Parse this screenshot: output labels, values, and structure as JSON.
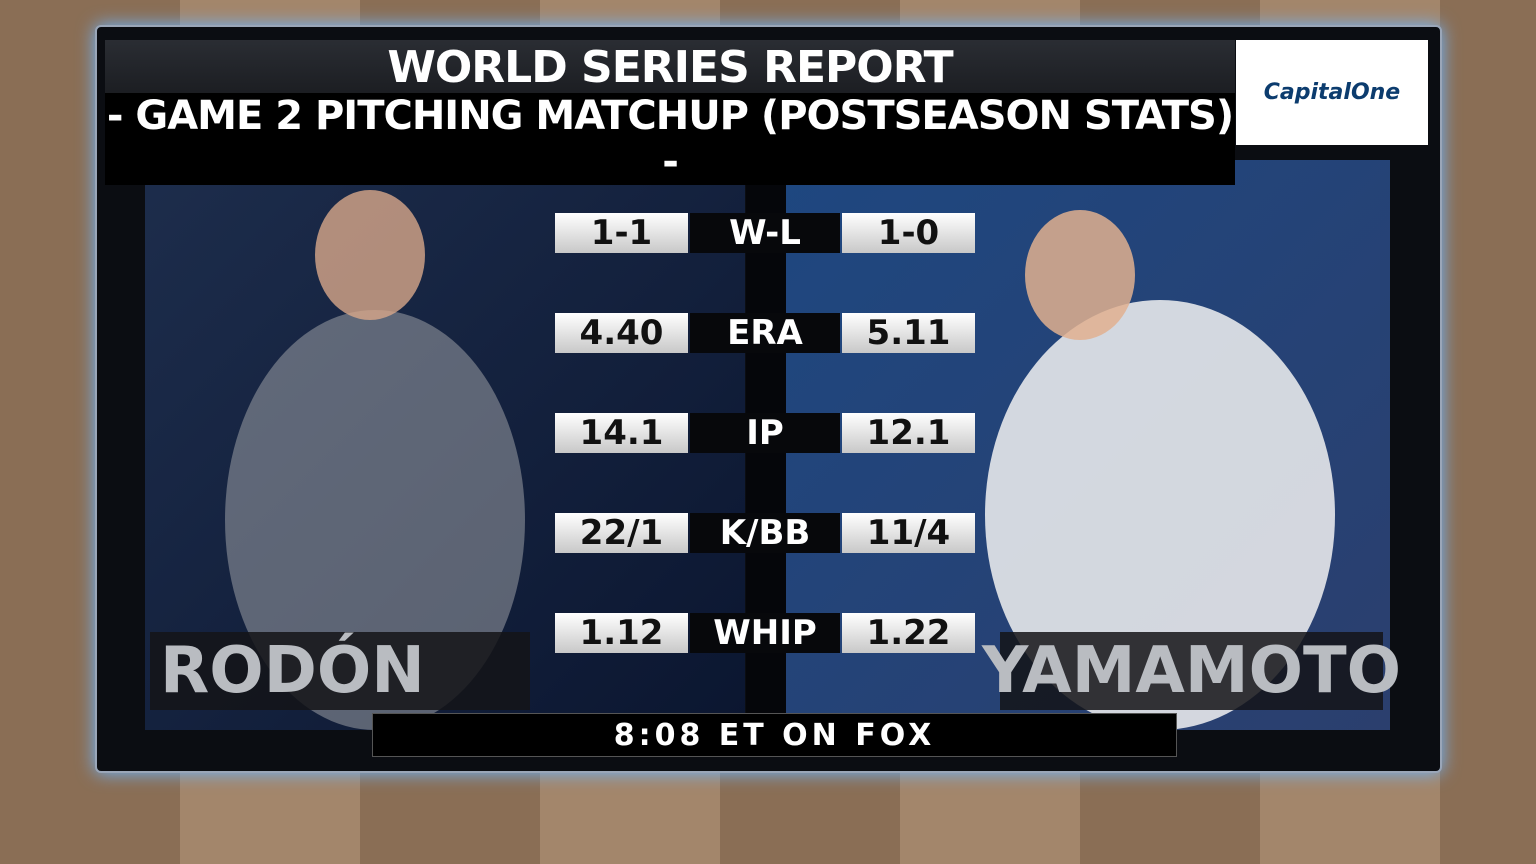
{
  "header": {
    "title": "WORLD SERIES REPORT",
    "subtitle": "- GAME 2 PITCHING MATCHUP (POSTSEASON STATS) -"
  },
  "sponsor": {
    "name": "Capital",
    "name_suffix": "One"
  },
  "pitchers": {
    "left": "RODÓN",
    "right": "YAMAMOTO"
  },
  "stats": [
    {
      "left": "1-1",
      "label": "W-L",
      "right": "1-0"
    },
    {
      "left": "4.40",
      "label": "ERA",
      "right": "5.11"
    },
    {
      "left": "14.1",
      "label": "IP",
      "right": "12.1"
    },
    {
      "left": "22/1",
      "label": "K/BB",
      "right": "11/4"
    },
    {
      "left": "1.12",
      "label": "WHIP",
      "right": "1.22"
    }
  ],
  "footer": "8:08 ET ON FOX"
}
